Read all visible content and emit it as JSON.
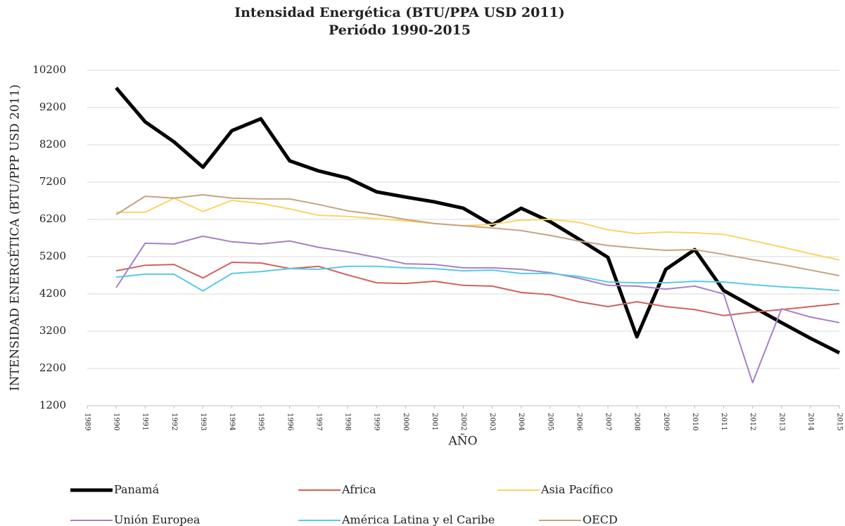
{
  "chart_data": {
    "type": "line",
    "title": "Intensidad Energética (BTU/PPA USD 2011)",
    "subtitle": "Periódo 1990-2015",
    "y_label": "INTENSIDAD ENERGÉTICA (BTU/PPP USD 2011)",
    "x_label": "AÑO",
    "x": [
      1990,
      1991,
      1992,
      1993,
      1994,
      1995,
      1996,
      1997,
      1998,
      1999,
      2000,
      2001,
      2002,
      2003,
      2004,
      2005,
      2006,
      2007,
      2008,
      2009,
      2010,
      2011,
      2012,
      2013,
      2014,
      2015
    ],
    "xlim": [
      1989,
      2015
    ],
    "xticks": [
      1989,
      1990,
      1991,
      1992,
      1993,
      1994,
      1995,
      1996,
      1997,
      1998,
      1999,
      2000,
      2001,
      2002,
      2003,
      2004,
      2005,
      2006,
      2007,
      2008,
      2009,
      2010,
      2011,
      2012,
      2013,
      2014,
      2015
    ],
    "ylim": [
      1200,
      10200
    ],
    "yticks": [
      1200,
      2200,
      3200,
      4200,
      5200,
      6200,
      7200,
      8200,
      9200,
      10200
    ],
    "grid": true,
    "legend": "bottom",
    "series": [
      {
        "name": "Panamá",
        "color": "#000000",
        "width": 5,
        "values": [
          9730,
          8820,
          8280,
          7600,
          8580,
          8900,
          7770,
          7500,
          7310,
          6940,
          6800,
          6670,
          6500,
          6050,
          6500,
          6140,
          5670,
          5180,
          3050,
          4860,
          5390,
          4290,
          3860,
          3430,
          3010,
          2620
        ]
      },
      {
        "name": "Africa",
        "color": "#d0625f",
        "width": 2,
        "values": [
          4820,
          4970,
          4990,
          4630,
          5050,
          5030,
          4880,
          4940,
          4710,
          4500,
          4480,
          4540,
          4430,
          4410,
          4240,
          4180,
          3990,
          3860,
          3990,
          3860,
          3780,
          3620,
          3710,
          3780,
          3860,
          3940
        ]
      },
      {
        "name": "Asia Pacífico",
        "color": "#fcd462",
        "width": 2,
        "values": [
          6390,
          6390,
          6770,
          6410,
          6710,
          6630,
          6480,
          6310,
          6280,
          6220,
          6160,
          6090,
          6030,
          6070,
          6180,
          6200,
          6120,
          5920,
          5820,
          5860,
          5840,
          5800,
          5630,
          5460,
          5280,
          5110
        ]
      },
      {
        "name": "Unión Europea",
        "color": "#a680c8",
        "width": 2,
        "values": [
          4370,
          5560,
          5540,
          5750,
          5600,
          5540,
          5620,
          5450,
          5330,
          5180,
          5010,
          4990,
          4900,
          4900,
          4860,
          4770,
          4620,
          4430,
          4410,
          4330,
          4410,
          4200,
          1820,
          3800,
          3580,
          3430
        ]
      },
      {
        "name": "América Latina y el Caribe",
        "color": "#5bc8e8",
        "width": 2,
        "values": [
          4650,
          4730,
          4730,
          4280,
          4750,
          4800,
          4880,
          4860,
          4940,
          4940,
          4900,
          4880,
          4820,
          4840,
          4750,
          4750,
          4670,
          4520,
          4500,
          4500,
          4540,
          4520,
          4450,
          4390,
          4350,
          4290
        ]
      },
      {
        "name": "OECD",
        "color": "#c4a484",
        "width": 2,
        "values": [
          6330,
          6820,
          6770,
          6860,
          6770,
          6750,
          6750,
          6600,
          6430,
          6330,
          6200,
          6090,
          6030,
          5970,
          5900,
          5770,
          5620,
          5500,
          5430,
          5370,
          5390,
          5260,
          5120,
          4990,
          4840,
          4690
        ]
      }
    ]
  }
}
